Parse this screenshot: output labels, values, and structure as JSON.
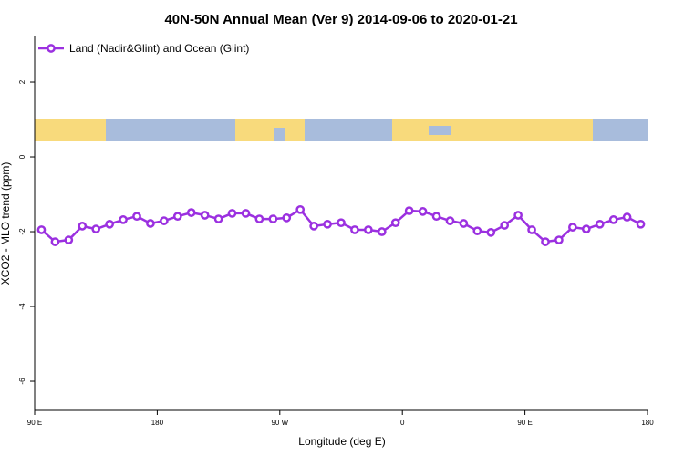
{
  "chart_data": {
    "type": "line",
    "title": "40N-50N Annual Mean (Ver 9)   2014-09-06 to 2020-01-21",
    "xlabel": "Longitude (deg E)",
    "ylabel": "XCO2 - MLO trend (ppm)",
    "x": [
      95,
      105,
      115,
      125,
      135,
      145,
      155,
      165,
      175,
      185,
      195,
      205,
      215,
      225,
      235,
      245,
      255,
      265,
      275,
      285,
      295,
      305,
      315,
      325,
      335,
      345,
      355,
      365,
      375,
      385,
      395,
      405,
      415,
      425,
      435,
      445,
      455,
      465,
      475,
      485,
      495,
      505,
      515,
      525,
      535
    ],
    "series": [
      {
        "name": "Land (Nadir&Glint) and Ocean (Glint)",
        "color": "#9b30e0",
        "values": [
          -1.95,
          -2.27,
          -2.22,
          -1.85,
          -1.93,
          -1.8,
          -1.68,
          -1.59,
          -1.78,
          -1.71,
          -1.59,
          -1.49,
          -1.56,
          -1.66,
          -1.51,
          -1.51,
          -1.66,
          -1.66,
          -1.63,
          -1.41,
          -1.85,
          -1.8,
          -1.76,
          -1.95,
          -1.95,
          -2.0,
          -1.76,
          -1.44,
          -1.46,
          -1.59,
          -1.71,
          -1.78,
          -1.98,
          -2.02,
          -1.83,
          -1.56,
          -1.95,
          -2.27,
          -2.22,
          -1.88,
          -1.93,
          -1.8,
          -1.68,
          -1.61,
          -1.8
        ]
      }
    ],
    "xlim": [
      90,
      540
    ],
    "xticks": [
      {
        "value": 90,
        "label": "90 E"
      },
      180,
      {
        "value": 270,
        "label": "90 W"
      },
      {
        "value": 360,
        "label": "0"
      },
      {
        "value": 450,
        "label": "90 E"
      },
      {
        "value": 540,
        "label": "180"
      }
    ],
    "ylim": [
      -6.78,
      3.22
    ],
    "yticks": [
      -6,
      -4,
      -2,
      0,
      2
    ],
    "legend": "upper left"
  }
}
